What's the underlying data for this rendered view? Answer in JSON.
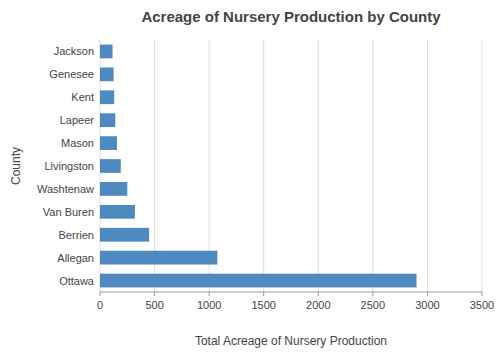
{
  "chart_data": {
    "type": "bar",
    "orientation": "horizontal",
    "title": "Acreage of Nursery Production by County",
    "xlabel": "Total Acreage of Nursery Production",
    "ylabel": "County",
    "categories": [
      "Ottawa",
      "Allegan",
      "Berrien",
      "Van Buren",
      "Washtenaw",
      "Livingston",
      "Mason",
      "Lapeer",
      "Kent",
      "Genesee",
      "Jackson"
    ],
    "values": [
      2900,
      1075,
      450,
      320,
      250,
      190,
      155,
      140,
      130,
      125,
      115
    ],
    "color": "#4e8abf",
    "xlim": [
      0,
      3500
    ],
    "xticks": [
      0,
      500,
      1000,
      1500,
      2000,
      2500,
      3000,
      3500
    ],
    "grid": true
  }
}
